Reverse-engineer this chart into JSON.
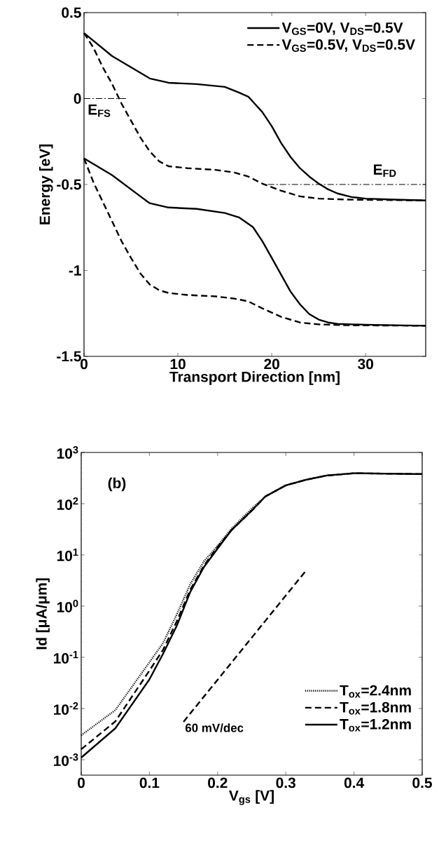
{
  "chart_data": [
    {
      "type": "line",
      "xlabel": "Transport Direction [nm]",
      "ylabel": "Energy [eV]",
      "xlim": [
        0,
        36.4
      ],
      "ylim": [
        -1.5,
        0.5
      ],
      "xticks": [
        0,
        10,
        20,
        30
      ],
      "yticks": [
        -1.5,
        -1,
        -0.5,
        0,
        0.5
      ],
      "grid": false,
      "legend": "top right",
      "marker": "none",
      "series": [
        {
          "name": "V$_{GS}$=0V, V$_{DS}$=0.5V",
          "color": "#000000",
          "line_style": "solid",
          "x": [
            0,
            3,
            6,
            7,
            9,
            12,
            15,
            16.5,
            17.5,
            19,
            20,
            21,
            22,
            23,
            24,
            25,
            26,
            27,
            28.5,
            30,
            33,
            36.4
          ],
          "values": [
            0.381,
            0.247,
            0.15,
            0.117,
            0.092,
            0.084,
            0.068,
            0.035,
            0.011,
            -0.079,
            -0.161,
            -0.259,
            -0.34,
            -0.405,
            -0.454,
            -0.495,
            -0.528,
            -0.552,
            -0.573,
            -0.582,
            -0.588,
            -0.593
          ]
        },
        {
          "name": "V$_{GS}$=0.5V, V$_{DS}$=0.5V",
          "color": "#000000",
          "line_style": "dashed",
          "x": [
            0,
            1,
            2,
            3,
            4,
            5,
            6,
            7,
            8,
            9,
            11,
            14,
            16,
            17.5,
            19,
            21,
            23,
            25,
            28,
            36.4
          ],
          "values": [
            0.381,
            0.296,
            0.182,
            0.084,
            -0.03,
            -0.128,
            -0.226,
            -0.307,
            -0.365,
            -0.394,
            -0.405,
            -0.415,
            -0.43,
            -0.454,
            -0.495,
            -0.536,
            -0.569,
            -0.582,
            -0.588,
            -0.593
          ]
        },
        {
          "color": "#000000",
          "line_style": "solid",
          "x": [
            0,
            3,
            6,
            7,
            9,
            12,
            15,
            16.5,
            18,
            19,
            20,
            21,
            22,
            23,
            24,
            25,
            26,
            27,
            28.5,
            30,
            33,
            36.4
          ],
          "values": [
            -0.348,
            -0.446,
            -0.569,
            -0.609,
            -0.634,
            -0.642,
            -0.666,
            -0.691,
            -0.748,
            -0.83,
            -0.927,
            -1.025,
            -1.123,
            -1.197,
            -1.254,
            -1.286,
            -1.303,
            -1.311,
            -1.314,
            -1.316,
            -1.319,
            -1.322
          ]
        },
        {
          "color": "#000000",
          "line_style": "dashed",
          "x": [
            0,
            1,
            2,
            3,
            4,
            5,
            6,
            7,
            8,
            9,
            11,
            14,
            16,
            17.5,
            19,
            21,
            23,
            25,
            28,
            36.4
          ],
          "values": [
            -0.348,
            -0.487,
            -0.601,
            -0.715,
            -0.83,
            -0.927,
            -1.017,
            -1.082,
            -1.115,
            -1.131,
            -1.143,
            -1.151,
            -1.164,
            -1.18,
            -1.221,
            -1.27,
            -1.303,
            -1.314,
            -1.319,
            -1.322
          ]
        },
        {
          "name": "E$_{FS}$",
          "color": "#000000",
          "line_style": "dashdot",
          "x": [
            0,
            4.6
          ],
          "values": [
            0,
            0
          ]
        },
        {
          "name": "E$_{FD}$",
          "color": "#000000",
          "line_style": "dashdot",
          "x": [
            19.6,
            36.4
          ],
          "values": [
            -0.5,
            -0.5
          ]
        }
      ]
    },
    {
      "type": "line",
      "xlabel": "V$_{gs}$ [V]",
      "ylabel": "Id [μA/μm]",
      "log": "y",
      "xlim": [
        0,
        0.5
      ],
      "ylim": [
        0.0005,
        1000
      ],
      "xticks": [
        0,
        0.1,
        0.2,
        0.3,
        0.4,
        0.5
      ],
      "yticks": [
        {
          "value": 0.001,
          "label": "10$^{-3}$"
        },
        {
          "value": 0.01,
          "label": "10$^{-2}$"
        },
        {
          "value": 0.1,
          "label": "10$^{-1}$"
        },
        {
          "value": 1,
          "label": "10$^{0}$"
        },
        {
          "value": 10,
          "label": "10$^{1}$"
        },
        {
          "value": 100,
          "label": "10$^{2}$"
        },
        {
          "value": 1000,
          "label": "10$^{3}$"
        }
      ],
      "grid": false,
      "legend": "bottom right",
      "marker": "none",
      "annotations": [
        "(b)",
        {
          "text": "60 mV/dec",
          "x": 0.15,
          "y": 0.0055
        }
      ],
      "series": [
        {
          "name": "T$_{ox}$=2.4nm",
          "color": "#000000",
          "line_style": "dotted",
          "x": [
            0,
            0.05,
            0.1,
            0.12,
            0.14,
            0.16,
            0.18,
            0.2,
            0.22,
            0.25,
            0.27,
            0.3,
            0.33,
            0.36,
            0.4,
            0.5
          ],
          "values": [
            0.003,
            0.0093,
            0.08,
            0.19,
            0.68,
            2.7,
            7.5,
            15,
            32,
            80,
            138,
            228,
            294,
            355,
            393,
            378
          ]
        },
        {
          "name": "T$_{ox}$=1.8nm",
          "color": "#000000",
          "line_style": "dashed",
          "x": [
            0,
            0.05,
            0.1,
            0.12,
            0.14,
            0.16,
            0.18,
            0.2,
            0.22,
            0.25,
            0.27,
            0.3,
            0.33,
            0.36,
            0.4,
            0.5
          ],
          "values": [
            0.0016,
            0.0056,
            0.055,
            0.14,
            0.5,
            2.1,
            6.2,
            14.2,
            30,
            73,
            138,
            228,
            294,
            355,
            393,
            378
          ]
        },
        {
          "name": "T$_{ox}$=1.2nm",
          "color": "#000000",
          "line_style": "solid",
          "x": [
            0,
            0.05,
            0.1,
            0.12,
            0.14,
            0.16,
            0.18,
            0.2,
            0.22,
            0.25,
            0.27,
            0.3,
            0.33,
            0.36,
            0.4,
            0.5
          ],
          "values": [
            0.0011,
            0.0041,
            0.037,
            0.117,
            0.41,
            1.9,
            5.8,
            13.3,
            30,
            73,
            138,
            228,
            294,
            355,
            393,
            378
          ]
        },
        {
          "color": "#000000",
          "line_style": "dashed",
          "x": [
            0.15,
            0.33
          ],
          "values": [
            0.0055,
            5
          ]
        }
      ]
    }
  ]
}
